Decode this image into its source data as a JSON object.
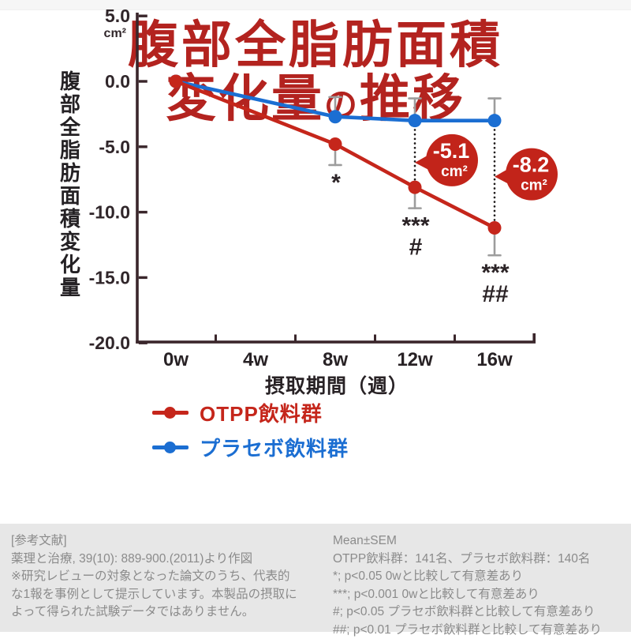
{
  "title": {
    "line1": "腹部全脂肪面積",
    "line2_pre": "変化量",
    "line2_particle": "の",
    "line2_post": "推移"
  },
  "chart_data": {
    "type": "line",
    "x": {
      "label": "摂取期間（週）",
      "tick_labels": [
        "0w",
        "4w",
        "8w",
        "12w",
        "16w"
      ],
      "weeks": [
        0,
        4,
        8,
        12,
        16
      ]
    },
    "y": {
      "label": "腹部全脂肪面積変化量",
      "unit": "cm²",
      "tick_values": [
        5.0,
        0.0,
        -5.0,
        -10.0,
        -15.0,
        -20.0
      ],
      "tick_labels": [
        "5.0",
        "0.0",
        "-5.0",
        "-10.0",
        "-15.0",
        "-20.0"
      ],
      "range": [
        -20.0,
        5.0
      ]
    },
    "series": [
      {
        "slug": "placebo",
        "name": "プラセボ飲料群",
        "color": "#1b6ed2",
        "weeks": [
          0,
          8,
          12,
          16
        ],
        "values": [
          0.0,
          -2.7,
          -3.0,
          -3.0
        ],
        "errors": [
          0,
          1.5,
          1.7,
          1.7
        ],
        "error_direction": "up"
      },
      {
        "slug": "otpp",
        "name": "OTPP飲料群",
        "color": "#c5261b",
        "weeks": [
          0,
          8,
          12,
          16
        ],
        "values": [
          0.0,
          -4.8,
          -8.1,
          -11.2
        ],
        "errors": [
          0,
          1.6,
          1.6,
          2.1
        ],
        "error_direction": "down"
      }
    ],
    "legend_order": [
      "otpp",
      "placebo"
    ],
    "sig_marks": [
      {
        "week": 8,
        "lines": [
          "*"
        ]
      },
      {
        "week": 12,
        "lines": [
          "***",
          "#"
        ]
      },
      {
        "week": 16,
        "lines": [
          "***",
          "##"
        ]
      }
    ],
    "diff_badges": [
      {
        "week": 12,
        "value": "-5.1",
        "unit": "cm²",
        "color": "#c2241a"
      },
      {
        "week": 16,
        "value": "-8.2",
        "unit": "cm²",
        "color": "#c2241a"
      }
    ],
    "error_bar_color": "#9d9d9d",
    "axis_color": "#3a262b",
    "grid": false,
    "legend_position": "inside-bottom-left"
  },
  "footer": {
    "left_lines": [
      "[参考文献]",
      "薬理と治療, 39(10): 889-900.(2011)より作図",
      "※研究レビューの対象となった論文のうち、代表的",
      "な1報を事例として提示しています。本製品の摂取に",
      "よって得られた試験データではありません。"
    ],
    "right_lines": [
      "Mean±SEM",
      "OTPP飲料群：141名、プラセボ飲料群：140名",
      "*; p<0.05 0wと比較して有意差あり",
      "***; p<0.001 0wと比較して有意差あり",
      "#; p<0.05 プラセボ飲料群と比較して有意差あり",
      "##; p<0.01 プラセボ飲料群と比較して有意差あり"
    ]
  }
}
